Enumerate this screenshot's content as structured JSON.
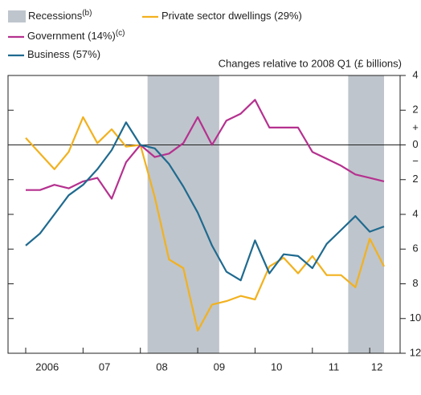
{
  "chart_data": {
    "type": "line",
    "y_label": "Changes relative to 2008 Q1 (£ billions)",
    "categories": [
      "2006",
      null,
      null,
      null,
      "07",
      null,
      null,
      null,
      "08",
      null,
      null,
      null,
      "09",
      null,
      null,
      null,
      "10",
      null,
      null,
      null,
      "11",
      null,
      null,
      null,
      "12",
      null
    ],
    "recessions": {
      "name": "Recessions",
      "note": "(b)",
      "color": "#bfc5cc",
      "ranges": [
        [
          8.5,
          13.5
        ],
        [
          22.5,
          25
        ]
      ]
    },
    "series": [
      {
        "name": "Private sector dwellings (29%)",
        "color": "#f2b11e",
        "values": [
          0.4,
          -0.5,
          -1.4,
          -0.4,
          1.6,
          0.1,
          0.9,
          -0.1,
          0,
          -3.0,
          -6.6,
          -7.1,
          -10.7,
          -9.2,
          -9.0,
          -8.7,
          -8.9,
          -7.0,
          -6.5,
          -7.4,
          -6.4,
          -7.5,
          -7.5,
          -8.2,
          -5.4,
          -7.0
        ]
      },
      {
        "name": "Government (14%)",
        "note": "(c)",
        "color": "#b5318f",
        "values": [
          -2.6,
          -2.6,
          -2.3,
          -2.5,
          -2.1,
          -1.9,
          -3.1,
          -1.0,
          0,
          -0.7,
          -0.5,
          0.1,
          1.6,
          0,
          1.4,
          1.8,
          2.6,
          1.0,
          1.0,
          1.0,
          -0.4,
          -0.8,
          -1.2,
          -1.7,
          -1.9,
          -2.1
        ]
      },
      {
        "name": "Business (57%)",
        "color": "#1f6a8f",
        "values": [
          -5.8,
          -5.1,
          -4.0,
          -2.9,
          -2.3,
          -1.4,
          -0.3,
          1.3,
          0,
          -0.2,
          -1.1,
          -2.4,
          -3.9,
          -5.8,
          -7.3,
          -7.8,
          -5.5,
          -7.4,
          -6.3,
          -6.4,
          -7.1,
          -5.7,
          -4.9,
          -4.1,
          -5.0,
          -4.7
        ]
      }
    ],
    "ylim": [
      -12,
      4
    ],
    "yticks": [
      4,
      2,
      0,
      {
        "value": -2,
        "label": "2"
      },
      {
        "value": -4,
        "label": "4"
      },
      {
        "value": -6,
        "label": "6"
      },
      {
        "value": -8,
        "label": "8"
      },
      {
        "value": -10,
        "label": "10"
      },
      {
        "value": -12,
        "label": "12"
      }
    ],
    "y_sign_labels": [
      "+",
      "−"
    ]
  }
}
